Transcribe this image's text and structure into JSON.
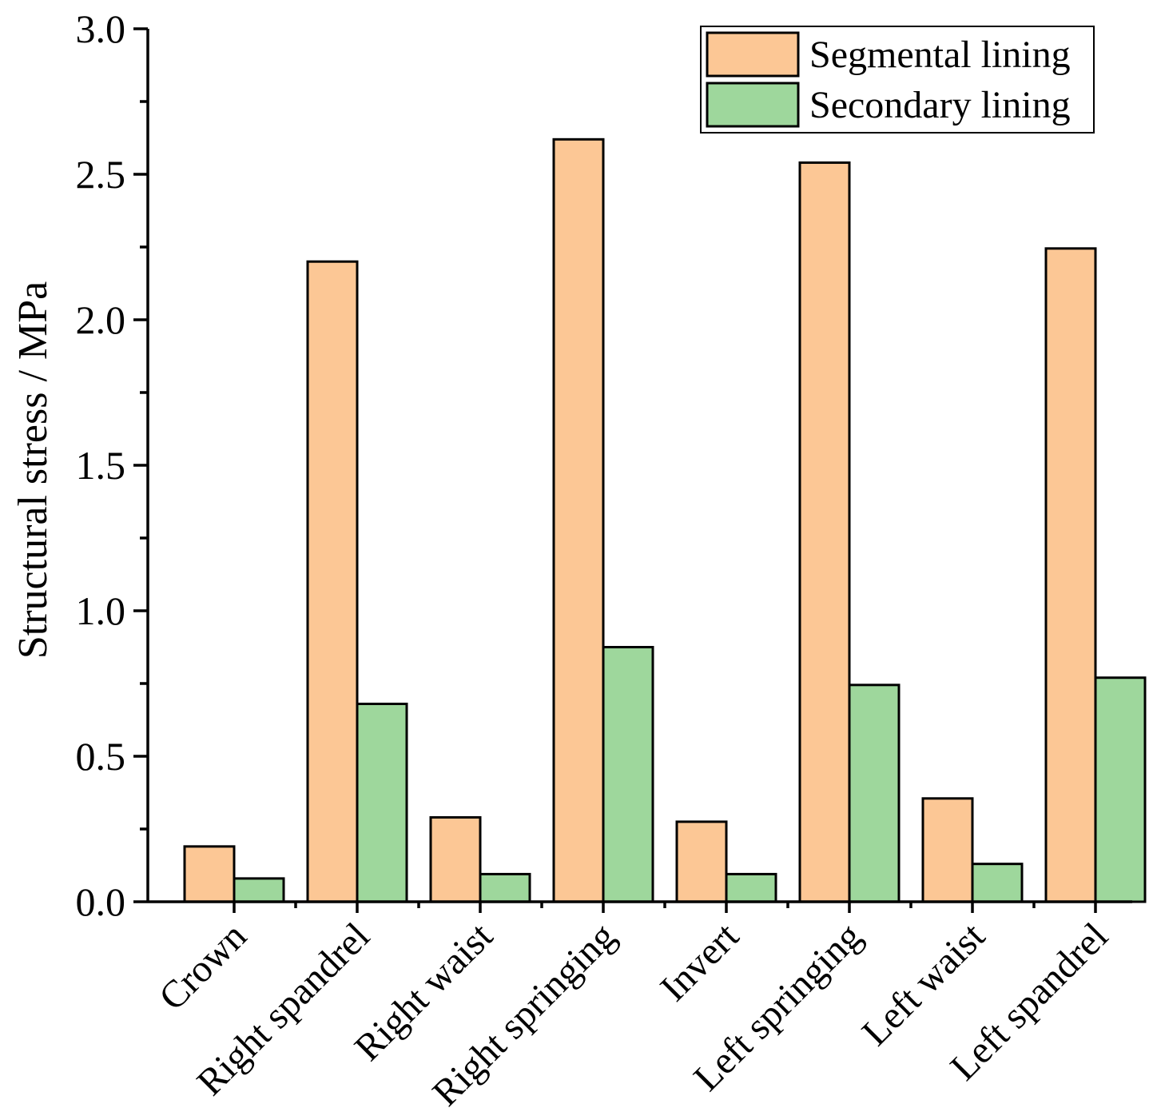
{
  "chart_data": {
    "type": "bar",
    "title": "",
    "xlabel": "",
    "ylabel": "Structural stress / MPa",
    "ylim": [
      0,
      3.0
    ],
    "yticks": [
      "0.0",
      "0.5",
      "1.0",
      "1.5",
      "2.0",
      "2.5",
      "3.0"
    ],
    "categories": [
      "Crown",
      "Right spandrel",
      "Right waist",
      "Right springing",
      "Invert",
      "Left springing",
      "Left waist",
      "Left spandrel"
    ],
    "series": [
      {
        "name": "Segmental lining",
        "color": "#fcc795",
        "values": [
          0.19,
          2.2,
          0.29,
          2.62,
          0.275,
          2.54,
          0.355,
          2.245
        ]
      },
      {
        "name": "Secondary lining",
        "color": "#9ed79c",
        "values": [
          0.08,
          0.68,
          0.095,
          0.875,
          0.095,
          0.745,
          0.13,
          0.77
        ]
      }
    ],
    "legend": "top-right"
  }
}
